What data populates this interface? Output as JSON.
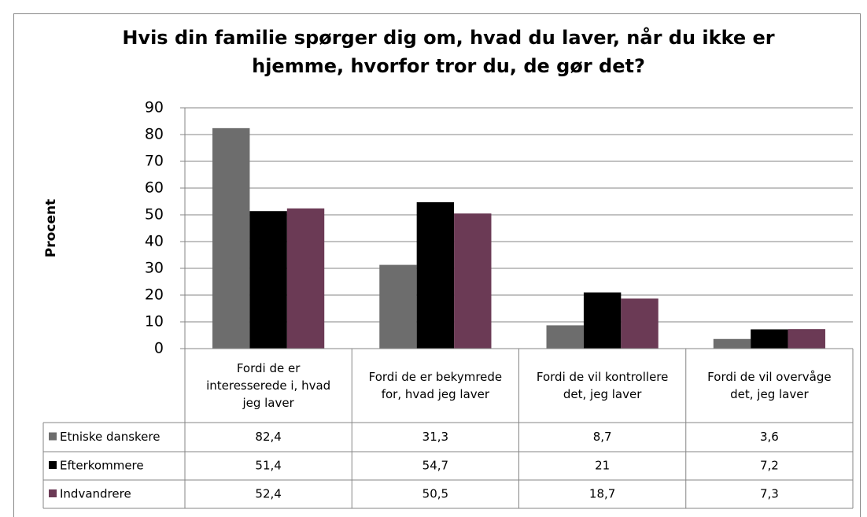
{
  "chart_data": {
    "type": "bar",
    "title": "Hvis din familie spørger dig om, hvad du laver, når du ikke er hjemme, hvorfor tror du, de gør det?",
    "y_label": "Procent",
    "categories": [
      "Fordi de er interesserede i, hvad jeg laver",
      "Fordi de er bekymrede for, hvad jeg laver",
      "Fordi de vil kontrollere det, jeg laver",
      "Fordi de vil overvåge det, jeg laver"
    ],
    "series": [
      {
        "name": "Etniske danskere",
        "color": "#6d6d6d",
        "values": [
          82.4,
          31.3,
          8.7,
          3.6
        ],
        "value_labels": [
          "82,4",
          "31,3",
          "8,7",
          "3,6"
        ]
      },
      {
        "name": "Efterkommere",
        "color": "#000000",
        "values": [
          51.4,
          54.7,
          21,
          7.2
        ],
        "value_labels": [
          "51,4",
          "54,7",
          "21",
          "7,2"
        ]
      },
      {
        "name": "Indvandrere",
        "color": "#6b3a55",
        "values": [
          52.4,
          50.5,
          18.7,
          7.3
        ],
        "value_labels": [
          "52,4",
          "50,5",
          "18,7",
          "7,3"
        ]
      }
    ],
    "ylim": [
      0,
      90
    ],
    "yticks": [
      0,
      10,
      20,
      30,
      40,
      50,
      60,
      70,
      80,
      90
    ],
    "grid": true
  }
}
